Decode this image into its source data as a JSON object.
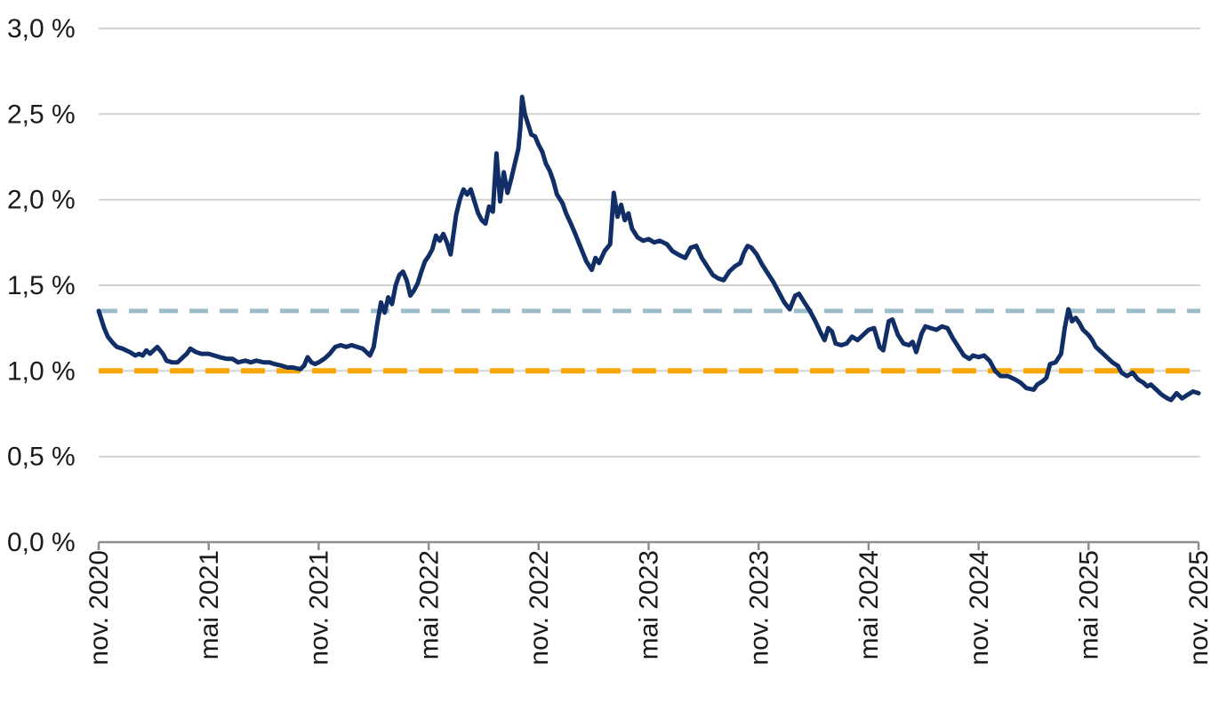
{
  "chart_data": {
    "type": "line",
    "title": "",
    "unit": "%",
    "grid": "horizontal",
    "legend": "none",
    "ylim": [
      0.0,
      3.0
    ],
    "y_tick_step": 0.5,
    "y_tick_labels": [
      "0,0 %",
      "0,5 %",
      "1,0 %",
      "1,5 %",
      "2,0 %",
      "2,5 %",
      "3,0 %"
    ],
    "x_tick_labels": [
      "nov. 2020",
      "mai 2021",
      "nov. 2021",
      "mai 2022",
      "nov. 2022",
      "mai 2023",
      "nov. 2023",
      "mai 2024",
      "nov. 2024",
      "mai 2025",
      "nov. 2025"
    ],
    "x_months_per_tick": 6,
    "x_label_rotation_deg": -90,
    "colors": {
      "series": "#112f66",
      "reference_upper": "#9dbcca",
      "reference_lower": "#f8a602",
      "gridline": "#d2d2d2",
      "axis": "#8f8f8f",
      "text": "#1a1a1a"
    },
    "reference_lines": [
      {
        "name": "upper-dashed-reference",
        "value": 1.35,
        "style": "dashed",
        "color": "#9dbcca"
      },
      {
        "name": "lower-dashed-reference",
        "value": 1.0,
        "style": "dashed",
        "color": "#f8a602"
      }
    ],
    "series": [
      {
        "name": "main-rate-series",
        "color": "#112f66",
        "style": "solid",
        "x_unit": "months_since_nov_2020",
        "points": [
          [
            0,
            1.35
          ],
          [
            0.15,
            1.3
          ],
          [
            0.3,
            1.25
          ],
          [
            0.5,
            1.2
          ],
          [
            0.8,
            1.16
          ],
          [
            1,
            1.14
          ],
          [
            1.3,
            1.13
          ],
          [
            1.7,
            1.11
          ],
          [
            2,
            1.09
          ],
          [
            2.2,
            1.1
          ],
          [
            2.4,
            1.09
          ],
          [
            2.6,
            1.12
          ],
          [
            2.8,
            1.1
          ],
          [
            3,
            1.12
          ],
          [
            3.2,
            1.14
          ],
          [
            3.5,
            1.1
          ],
          [
            3.7,
            1.06
          ],
          [
            4,
            1.05
          ],
          [
            4.3,
            1.05
          ],
          [
            4.6,
            1.08
          ],
          [
            4.8,
            1.1
          ],
          [
            5,
            1.13
          ],
          [
            5.3,
            1.11
          ],
          [
            5.6,
            1.1
          ],
          [
            6,
            1.1
          ],
          [
            6.3,
            1.09
          ],
          [
            6.6,
            1.08
          ],
          [
            7,
            1.07
          ],
          [
            7.3,
            1.07
          ],
          [
            7.6,
            1.05
          ],
          [
            8,
            1.06
          ],
          [
            8.3,
            1.05
          ],
          [
            8.6,
            1.06
          ],
          [
            9,
            1.05
          ],
          [
            9.3,
            1.05
          ],
          [
            9.6,
            1.04
          ],
          [
            10,
            1.03
          ],
          [
            10.3,
            1.02
          ],
          [
            10.6,
            1.02
          ],
          [
            11,
            1.01
          ],
          [
            11.2,
            1.03
          ],
          [
            11.4,
            1.08
          ],
          [
            11.6,
            1.05
          ],
          [
            11.8,
            1.04
          ],
          [
            12,
            1.05
          ],
          [
            12.3,
            1.07
          ],
          [
            12.6,
            1.1
          ],
          [
            12.9,
            1.14
          ],
          [
            13.2,
            1.15
          ],
          [
            13.5,
            1.14
          ],
          [
            13.8,
            1.15
          ],
          [
            14.1,
            1.14
          ],
          [
            14.4,
            1.13
          ],
          [
            14.6,
            1.11
          ],
          [
            14.8,
            1.09
          ],
          [
            15,
            1.14
          ],
          [
            15.2,
            1.28
          ],
          [
            15.4,
            1.4
          ],
          [
            15.6,
            1.34
          ],
          [
            15.8,
            1.43
          ],
          [
            16,
            1.39
          ],
          [
            16.2,
            1.5
          ],
          [
            16.4,
            1.56
          ],
          [
            16.6,
            1.58
          ],
          [
            16.8,
            1.53
          ],
          [
            17,
            1.44
          ],
          [
            17.2,
            1.47
          ],
          [
            17.4,
            1.51
          ],
          [
            17.6,
            1.58
          ],
          [
            17.8,
            1.64
          ],
          [
            18,
            1.67
          ],
          [
            18.2,
            1.71
          ],
          [
            18.4,
            1.79
          ],
          [
            18.6,
            1.76
          ],
          [
            18.8,
            1.8
          ],
          [
            19,
            1.75
          ],
          [
            19.2,
            1.68
          ],
          [
            19.5,
            1.91
          ],
          [
            19.7,
            2
          ],
          [
            19.9,
            2.06
          ],
          [
            20.1,
            2.03
          ],
          [
            20.3,
            2.06
          ],
          [
            20.5,
            1.99
          ],
          [
            20.7,
            1.92
          ],
          [
            20.9,
            1.88
          ],
          [
            21.1,
            1.86
          ],
          [
            21.3,
            1.96
          ],
          [
            21.5,
            1.93
          ],
          [
            21.7,
            2.27
          ],
          [
            21.9,
            1.99
          ],
          [
            22.1,
            2.16
          ],
          [
            22.3,
            2.04
          ],
          [
            22.5,
            2.12
          ],
          [
            22.7,
            2.21
          ],
          [
            22.9,
            2.3
          ],
          [
            23,
            2.42
          ],
          [
            23.1,
            2.6
          ],
          [
            23.25,
            2.5
          ],
          [
            23.4,
            2.45
          ],
          [
            23.6,
            2.38
          ],
          [
            23.8,
            2.37
          ],
          [
            24,
            2.32
          ],
          [
            24.2,
            2.28
          ],
          [
            24.4,
            2.21
          ],
          [
            24.6,
            2.17
          ],
          [
            24.8,
            2.11
          ],
          [
            25,
            2.03
          ],
          [
            25.3,
            1.98
          ],
          [
            25.5,
            1.92
          ],
          [
            25.8,
            1.85
          ],
          [
            26,
            1.8
          ],
          [
            26.3,
            1.72
          ],
          [
            26.6,
            1.64
          ],
          [
            26.9,
            1.59
          ],
          [
            27.1,
            1.66
          ],
          [
            27.3,
            1.63
          ],
          [
            27.6,
            1.7
          ],
          [
            27.9,
            1.74
          ],
          [
            28.1,
            2.04
          ],
          [
            28.3,
            1.9
          ],
          [
            28.5,
            1.97
          ],
          [
            28.7,
            1.88
          ],
          [
            28.9,
            1.92
          ],
          [
            29.1,
            1.83
          ],
          [
            29.4,
            1.78
          ],
          [
            29.7,
            1.76
          ],
          [
            30,
            1.77
          ],
          [
            30.3,
            1.75
          ],
          [
            30.6,
            1.76
          ],
          [
            31,
            1.74
          ],
          [
            31.3,
            1.7
          ],
          [
            31.6,
            1.68
          ],
          [
            32,
            1.66
          ],
          [
            32.3,
            1.72
          ],
          [
            32.6,
            1.73
          ],
          [
            32.9,
            1.66
          ],
          [
            33.2,
            1.61
          ],
          [
            33.5,
            1.56
          ],
          [
            33.8,
            1.54
          ],
          [
            34.1,
            1.53
          ],
          [
            34.4,
            1.58
          ],
          [
            34.7,
            1.61
          ],
          [
            35,
            1.63
          ],
          [
            35.2,
            1.69
          ],
          [
            35.4,
            1.73
          ],
          [
            35.6,
            1.72
          ],
          [
            35.9,
            1.68
          ],
          [
            36.2,
            1.62
          ],
          [
            36.5,
            1.57
          ],
          [
            36.8,
            1.52
          ],
          [
            37.1,
            1.46
          ],
          [
            37.4,
            1.4
          ],
          [
            37.7,
            1.36
          ],
          [
            38,
            1.44
          ],
          [
            38.2,
            1.45
          ],
          [
            38.5,
            1.4
          ],
          [
            38.8,
            1.35
          ],
          [
            39.1,
            1.29
          ],
          [
            39.4,
            1.22
          ],
          [
            39.6,
            1.18
          ],
          [
            39.8,
            1.25
          ],
          [
            40,
            1.23
          ],
          [
            40.2,
            1.16
          ],
          [
            40.5,
            1.15
          ],
          [
            40.8,
            1.16
          ],
          [
            41.1,
            1.2
          ],
          [
            41.4,
            1.18
          ],
          [
            41.7,
            1.21
          ],
          [
            42,
            1.24
          ],
          [
            42.3,
            1.25
          ],
          [
            42.6,
            1.14
          ],
          [
            42.8,
            1.12
          ],
          [
            43.1,
            1.29
          ],
          [
            43.3,
            1.3
          ],
          [
            43.6,
            1.21
          ],
          [
            43.9,
            1.16
          ],
          [
            44.2,
            1.15
          ],
          [
            44.4,
            1.17
          ],
          [
            44.6,
            1.11
          ],
          [
            44.9,
            1.22
          ],
          [
            45.1,
            1.26
          ],
          [
            45.4,
            1.25
          ],
          [
            45.7,
            1.24
          ],
          [
            46,
            1.26
          ],
          [
            46.3,
            1.25
          ],
          [
            46.6,
            1.19
          ],
          [
            46.9,
            1.14
          ],
          [
            47.2,
            1.09
          ],
          [
            47.5,
            1.07
          ],
          [
            47.7,
            1.09
          ],
          [
            48,
            1.08
          ],
          [
            48.3,
            1.09
          ],
          [
            48.6,
            1.06
          ],
          [
            48.9,
            1
          ],
          [
            49.2,
            0.97
          ],
          [
            49.6,
            0.97
          ],
          [
            50,
            0.95
          ],
          [
            50.3,
            0.93
          ],
          [
            50.6,
            0.9
          ],
          [
            51,
            0.89
          ],
          [
            51.2,
            0.92
          ],
          [
            51.5,
            0.94
          ],
          [
            51.7,
            0.96
          ],
          [
            51.9,
            1.04
          ],
          [
            52.2,
            1.05
          ],
          [
            52.5,
            1.1
          ],
          [
            52.7,
            1.25
          ],
          [
            52.9,
            1.36
          ],
          [
            53.1,
            1.29
          ],
          [
            53.3,
            1.31
          ],
          [
            53.5,
            1.28
          ],
          [
            53.7,
            1.24
          ],
          [
            54,
            1.21
          ],
          [
            54.2,
            1.18
          ],
          [
            54.4,
            1.14
          ],
          [
            54.7,
            1.11
          ],
          [
            55,
            1.08
          ],
          [
            55.3,
            1.05
          ],
          [
            55.6,
            1.03
          ],
          [
            55.8,
            0.99
          ],
          [
            56.1,
            0.97
          ],
          [
            56.4,
            0.99
          ],
          [
            56.7,
            0.95
          ],
          [
            57,
            0.93
          ],
          [
            57.2,
            0.91
          ],
          [
            57.4,
            0.92
          ],
          [
            57.7,
            0.89
          ],
          [
            58,
            0.86
          ],
          [
            58.3,
            0.84
          ],
          [
            58.5,
            0.83
          ],
          [
            58.8,
            0.87
          ],
          [
            59.1,
            0.84
          ],
          [
            59.4,
            0.86
          ],
          [
            59.7,
            0.88
          ],
          [
            60,
            0.87
          ]
        ]
      }
    ]
  }
}
